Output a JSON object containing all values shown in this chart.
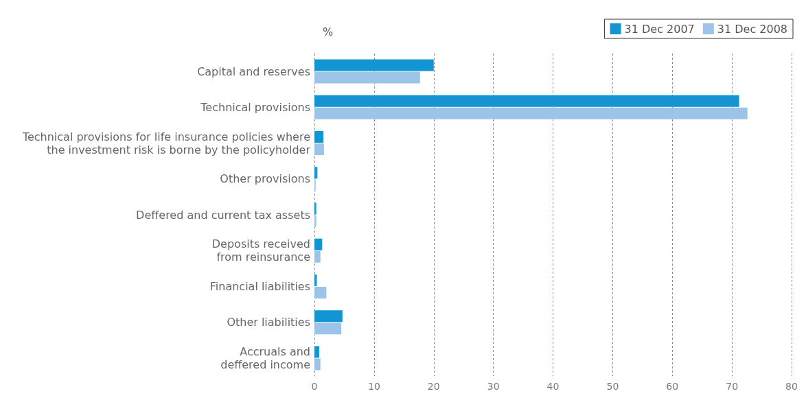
{
  "chart_data": {
    "type": "bar",
    "orientation": "horizontal",
    "xlabel": "%",
    "categories": [
      "Capital and reserves",
      "Technical provisions",
      "Technical provisions for life insurance policies where\nthe investment risk is borne by the policyholder",
      "Other provisions",
      "Deffered and current tax assets",
      "Deposits received\nfrom reinsurance",
      "Financial liabilities",
      "Other liabilities",
      "Accruals and\ndeffered income"
    ],
    "series": [
      {
        "name": "31 Dec 2007",
        "color": "#1395d4",
        "values": [
          20.0,
          71.2,
          1.5,
          0.5,
          0.3,
          1.3,
          0.4,
          4.7,
          0.8
        ]
      },
      {
        "name": "31 Dec 2008",
        "color": "#9cc3e8",
        "values": [
          17.7,
          72.6,
          1.6,
          0.2,
          0.3,
          1.0,
          2.0,
          4.5,
          1.0
        ]
      }
    ],
    "xlim": [
      0,
      80
    ],
    "xticks": [
      0,
      10,
      20,
      30,
      40,
      50,
      60,
      70,
      80
    ],
    "grid": "x",
    "legend": "top right"
  }
}
